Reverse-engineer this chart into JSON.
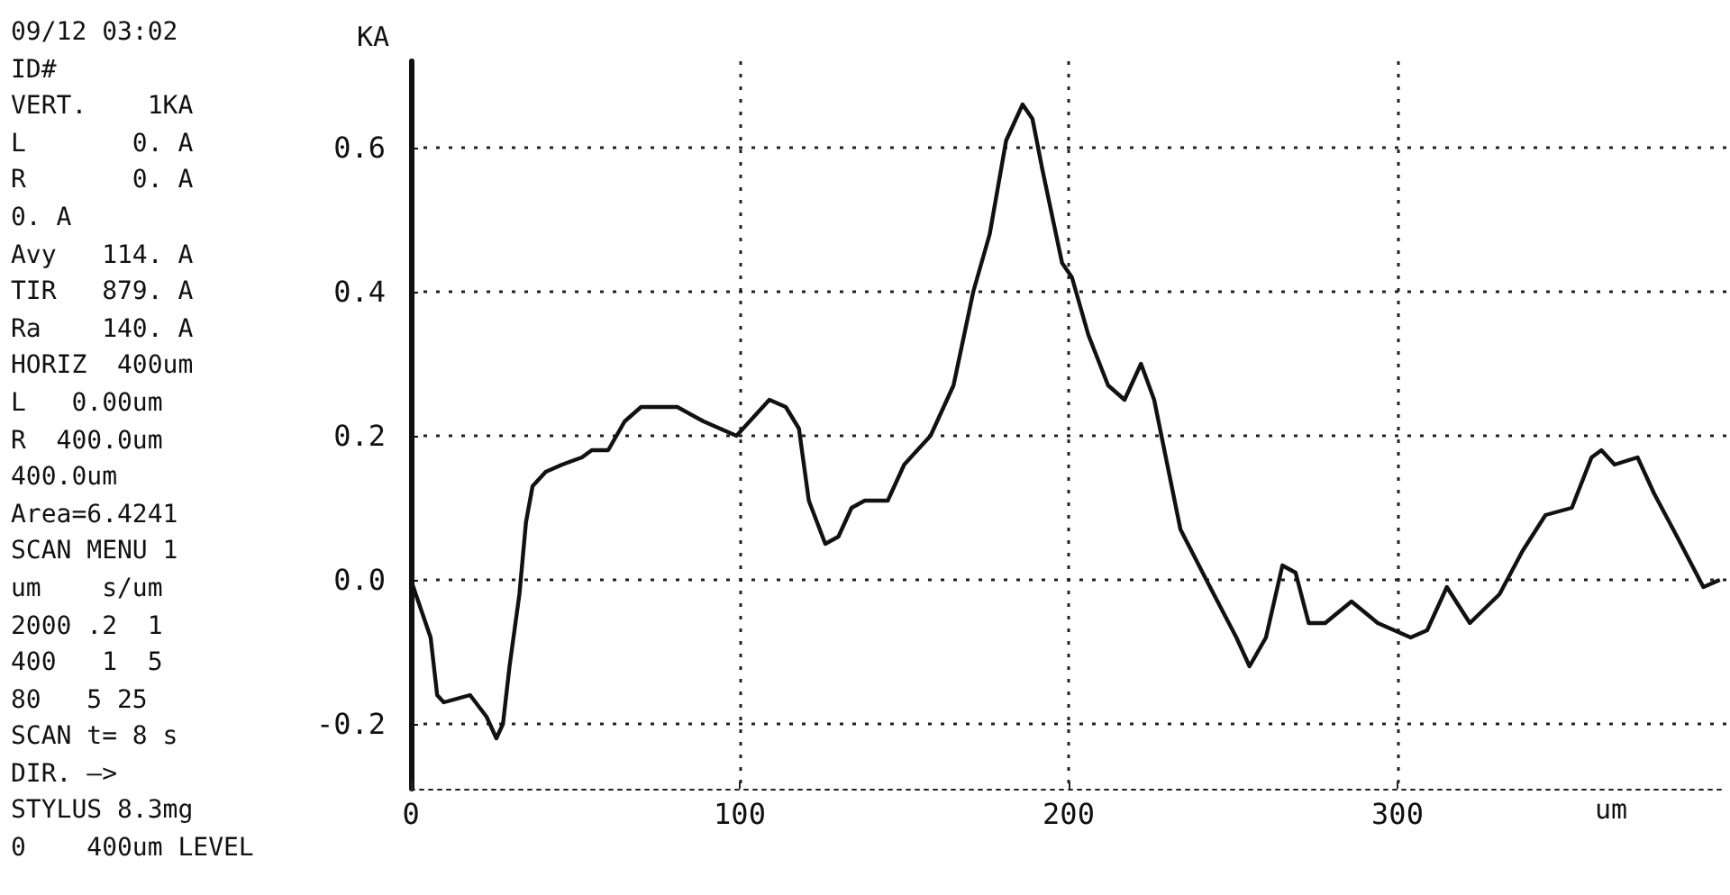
{
  "chart_data": {
    "type": "line",
    "ylabel": "KA",
    "xlabel": "um",
    "x": [
      0,
      6,
      8,
      10,
      18,
      23,
      26,
      28,
      30,
      33,
      35,
      37,
      41,
      46,
      52,
      55,
      60,
      65,
      70,
      81,
      89,
      99,
      109,
      114,
      118,
      121,
      126,
      130,
      134,
      138,
      145,
      150,
      158,
      165,
      171,
      176,
      181,
      186,
      189,
      192,
      198,
      201,
      206,
      212,
      217,
      222,
      226,
      230,
      234,
      243,
      251,
      255,
      260,
      265,
      269,
      273,
      278,
      286,
      294,
      304,
      309,
      315,
      322,
      331,
      338,
      345,
      353,
      359,
      362,
      366,
      373,
      378,
      385,
      393,
      398
    ],
    "series": [
      {
        "color": "#111111",
        "values": [
          0.0,
          -0.08,
          -0.16,
          -0.17,
          -0.16,
          -0.19,
          -0.22,
          -0.2,
          -0.12,
          -0.02,
          0.08,
          0.13,
          0.15,
          0.16,
          0.17,
          0.18,
          0.18,
          0.22,
          0.24,
          0.24,
          0.22,
          0.2,
          0.25,
          0.24,
          0.21,
          0.11,
          0.05,
          0.06,
          0.1,
          0.11,
          0.11,
          0.16,
          0.2,
          0.27,
          0.4,
          0.48,
          0.61,
          0.66,
          0.64,
          0.57,
          0.44,
          0.42,
          0.34,
          0.27,
          0.25,
          0.3,
          0.25,
          0.16,
          0.07,
          -0.01,
          -0.08,
          -0.12,
          -0.08,
          0.02,
          0.01,
          -0.06,
          -0.06,
          -0.03,
          -0.06,
          -0.08,
          -0.07,
          -0.01,
          -0.06,
          -0.02,
          0.04,
          0.09,
          0.1,
          0.17,
          0.18,
          0.16,
          0.17,
          0.12,
          0.06,
          -0.01,
          0.0
        ]
      }
    ],
    "xlim": [
      0,
      400
    ],
    "xticks": [
      0,
      100,
      200,
      300
    ],
    "ylim": [
      -0.29,
      0.72
    ],
    "yticks": [
      -0.2,
      {
        "value": 0,
        "label": "0.0"
      },
      0.2,
      0.4,
      0.6
    ],
    "grid": true,
    "marker": "none",
    "line_style": "solid",
    "annotations": [
      "09/12 03:02",
      "ID#",
      "VERT.    1KA",
      "L       0. A",
      "R       0. A",
      "0. A",
      "Avy   114. A",
      "TIR   879. A",
      "Ra    140. A",
      "HORIZ  400um",
      "L   0.00um",
      "R  400.0um",
      "400.0um",
      "Area=6.4241",
      "SCAN MENU 1",
      "um    s/um",
      "2000 .2  1",
      "400   1  5",
      "80   5 25",
      "SCAN t= 8 s",
      "DIR. —>",
      "STYLUS 8.3mg",
      "0    400um LEVEL"
    ]
  }
}
